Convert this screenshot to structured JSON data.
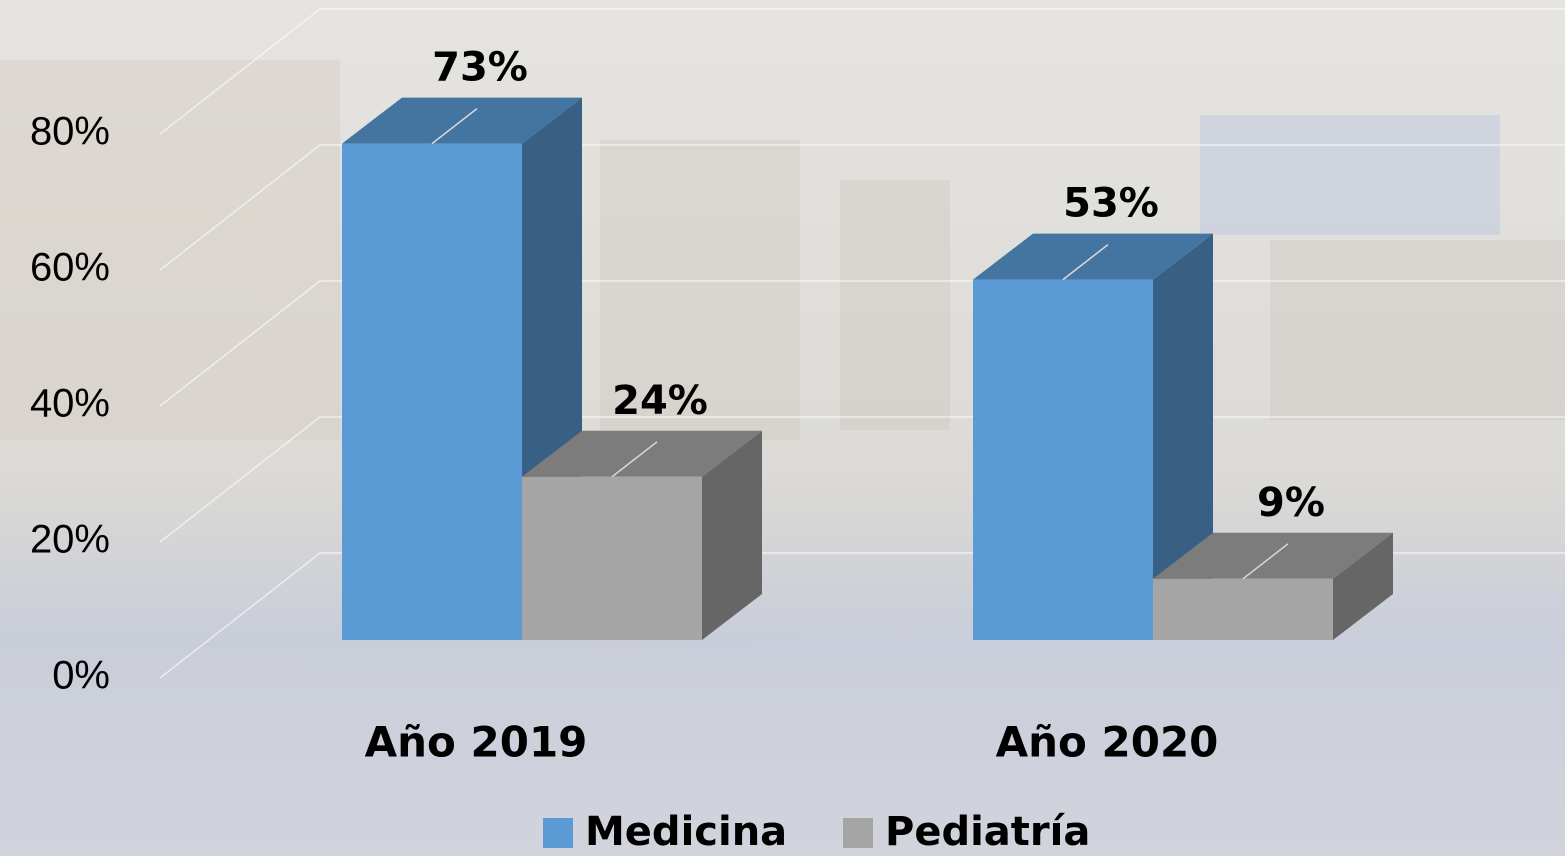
{
  "chart_data": {
    "type": "bar3d",
    "categories": [
      "Año 2019",
      "Año 2020"
    ],
    "series": [
      {
        "name": "Medicina",
        "color": "#5b9bd5",
        "values": [
          73,
          53
        ],
        "value_labels": [
          "73%",
          "53%"
        ]
      },
      {
        "name": "Pediatría",
        "color": "#a5a5a5",
        "values": [
          24,
          9
        ],
        "value_labels": [
          "24%",
          "9%"
        ]
      }
    ],
    "ylim": [
      0,
      80
    ],
    "yticks": [
      {
        "value": 0,
        "label": "0%"
      },
      {
        "value": 20,
        "label": "20%"
      },
      {
        "value": 40,
        "label": "40%"
      },
      {
        "value": 60,
        "label": "60%"
      },
      {
        "value": 80,
        "label": "80%"
      }
    ],
    "grid": true,
    "legend": "bottom"
  }
}
